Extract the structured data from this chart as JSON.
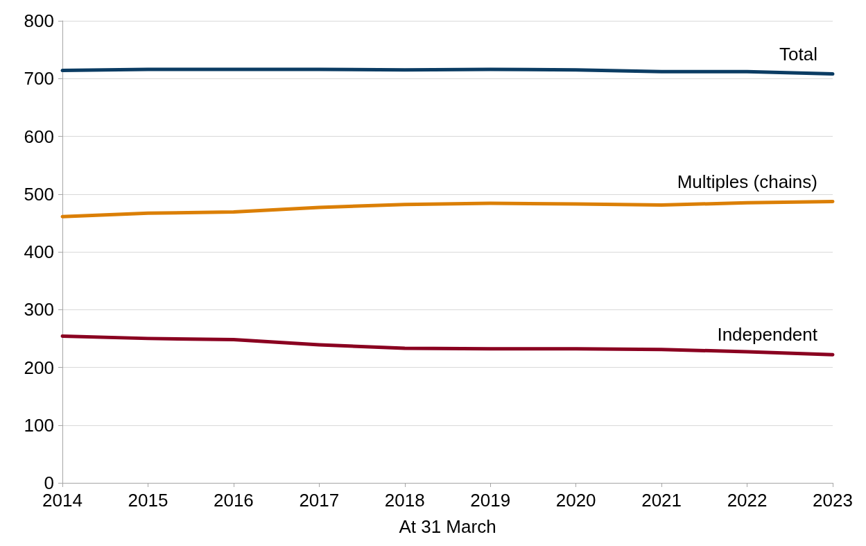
{
  "chart_data": {
    "type": "line",
    "xlabel": "At 31 March",
    "categories": [
      "2014",
      "2015",
      "2016",
      "2017",
      "2018",
      "2019",
      "2020",
      "2021",
      "2022",
      "2023"
    ],
    "series": [
      {
        "name": "Total",
        "color": "#0b3c63",
        "values": [
          714,
          716,
          716,
          716,
          715,
          716,
          715,
          712,
          712,
          708
        ]
      },
      {
        "name": "Multiples (chains)",
        "color": "#db7f06",
        "values": [
          461,
          467,
          469,
          477,
          482,
          484,
          483,
          481,
          485,
          487
        ]
      },
      {
        "name": "Independent",
        "color": "#8a0020",
        "values": [
          254,
          250,
          248,
          239,
          233,
          232,
          232,
          231,
          227,
          222
        ]
      }
    ],
    "ylim": [
      0,
      800
    ],
    "yticks": [
      0,
      100,
      200,
      300,
      400,
      500,
      600,
      700,
      800
    ],
    "grid": "y",
    "legend": false,
    "marker": "none",
    "line_style": "solid"
  }
}
